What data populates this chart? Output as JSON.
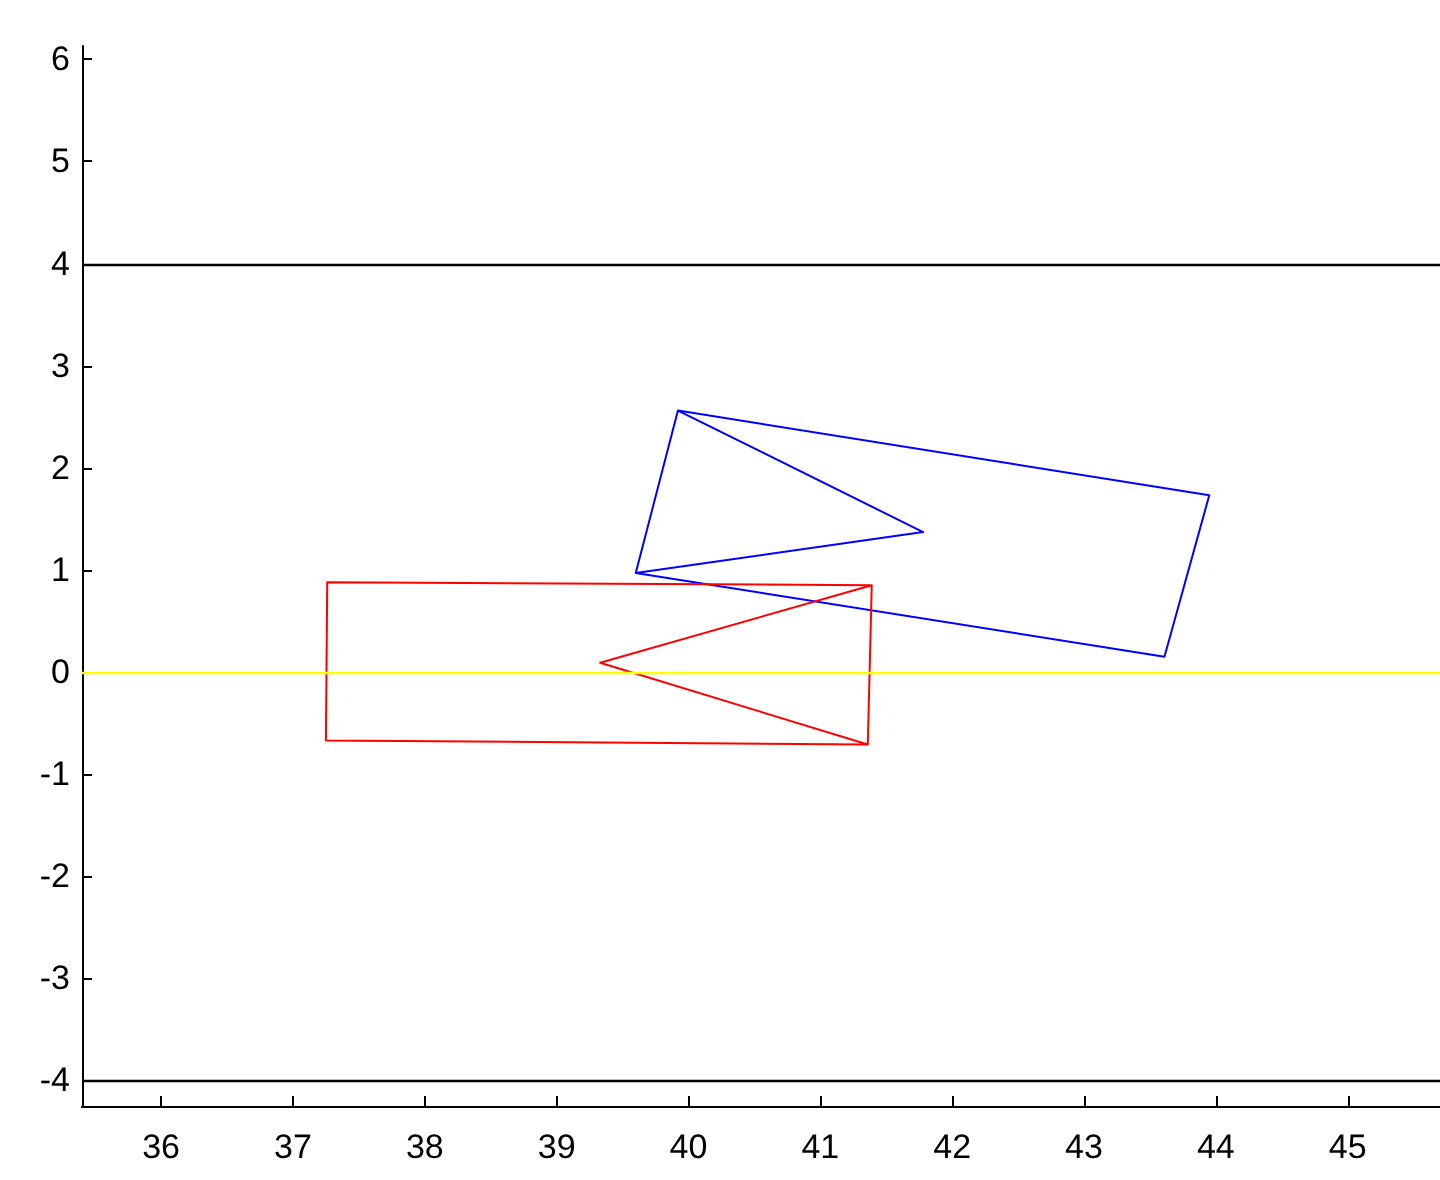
{
  "chart_data": {
    "type": "line",
    "marker": "none",
    "line_style": "solid",
    "grid": false,
    "xlim": [
      35.4,
      45.7
    ],
    "ylim": [
      -4.25,
      6.13
    ],
    "xticks": [
      36,
      37,
      38,
      39,
      40,
      41,
      42,
      43,
      44,
      45
    ],
    "yticks": [
      -4,
      -3,
      -2,
      -1,
      0,
      1,
      2,
      3,
      4,
      5,
      6
    ],
    "series": [
      {
        "color": "#0000ff",
        "x": [
          39.6,
          39.92,
          43.95,
          43.61,
          39.6,
          41.78,
          39.92
        ],
        "values": [
          0.97,
          2.56,
          1.73,
          0.15,
          0.97,
          1.37,
          2.56
        ]
      },
      {
        "color": "#ff0000",
        "x": [
          41.39,
          37.26,
          37.25,
          41.36,
          41.39,
          39.33,
          41.36
        ],
        "values": [
          0.85,
          0.88,
          -0.67,
          -0.71,
          0.85,
          0.09,
          -0.71
        ]
      }
    ],
    "ref_lines": [
      {
        "axis": "y",
        "value": 4,
        "color": "#000000"
      },
      {
        "axis": "y",
        "value": 0,
        "color": "#ffff00"
      },
      {
        "axis": "y",
        "value": -4,
        "color": "#000000"
      }
    ]
  }
}
